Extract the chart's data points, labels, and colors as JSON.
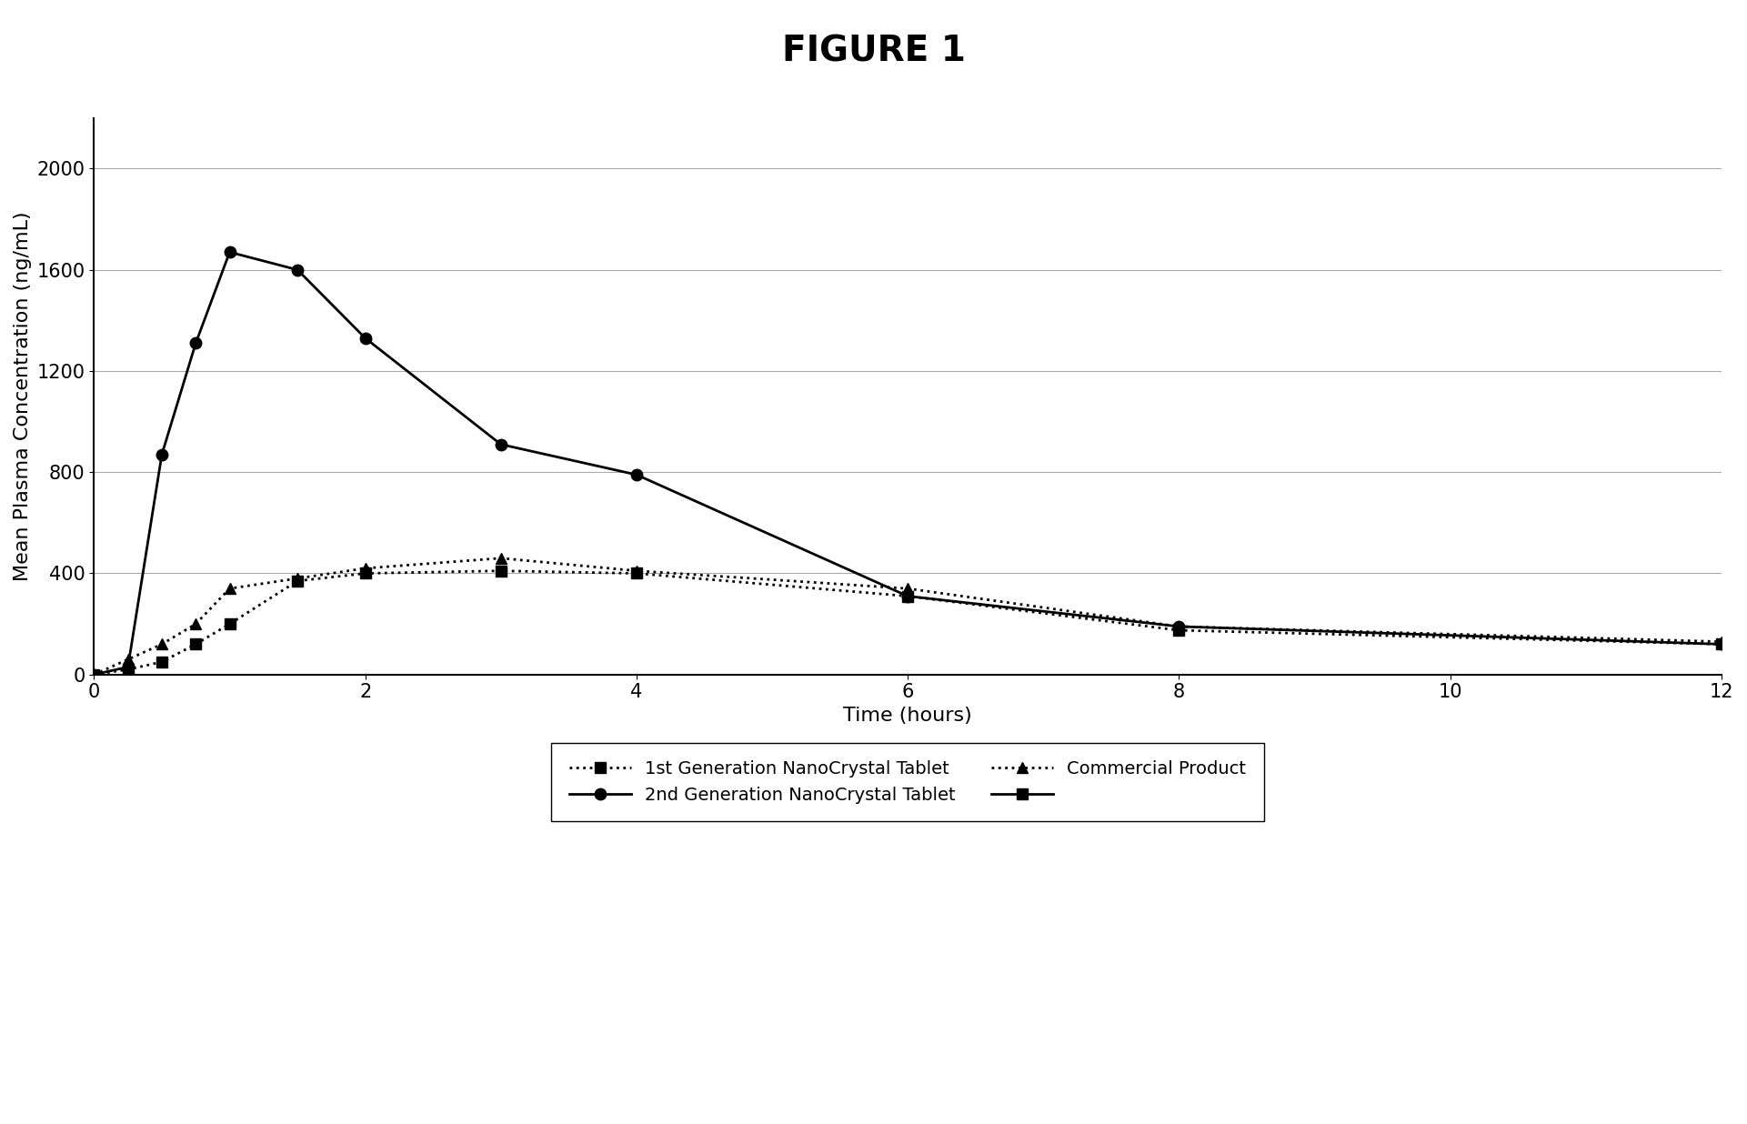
{
  "title": "FIGURE 1",
  "xlabel": "Time (hours)",
  "ylabel": "Mean Plasma Concentration (ng/mL)",
  "xlim": [
    0,
    12
  ],
  "ylim": [
    0,
    2200
  ],
  "yticks": [
    0,
    400,
    800,
    1200,
    1600,
    2000
  ],
  "xticks": [
    0,
    2,
    4,
    6,
    8,
    10,
    12
  ],
  "series": {
    "gen1": {
      "label": "1st Generation NanoCrystal Tablet",
      "x": [
        0,
        0.25,
        0.5,
        0.75,
        1.0,
        1.5,
        2.0,
        3.0,
        4.0,
        6.0,
        8.0,
        12.0
      ],
      "y": [
        0,
        20,
        50,
        120,
        200,
        370,
        400,
        410,
        400,
        310,
        175,
        120
      ],
      "color": "#000000",
      "linestyle": "dotted",
      "linewidth": 2.0,
      "marker": "s",
      "markersize": 8,
      "markerfacecolor": "#000000"
    },
    "gen2": {
      "label": "2nd Generation NanoCrystal Tablet",
      "x": [
        0,
        0.25,
        0.5,
        0.75,
        1.0,
        1.5,
        2.0,
        3.0,
        4.0,
        6.0,
        8.0,
        12.0
      ],
      "y": [
        0,
        30,
        870,
        1310,
        1670,
        1600,
        1330,
        910,
        790,
        310,
        190,
        120
      ],
      "color": "#000000",
      "linestyle": "solid",
      "linewidth": 2.0,
      "marker": "o",
      "markersize": 9,
      "markerfacecolor": "#000000"
    },
    "commercial": {
      "label": "Commercial Product",
      "x": [
        0,
        0.25,
        0.5,
        0.75,
        1.0,
        1.5,
        2.0,
        3.0,
        4.0,
        6.0,
        8.0,
        12.0
      ],
      "y": [
        0,
        60,
        120,
        200,
        340,
        380,
        420,
        460,
        410,
        340,
        190,
        130
      ],
      "color": "#000000",
      "linestyle": "dotted",
      "linewidth": 2.0,
      "marker": "^",
      "markersize": 9,
      "markerfacecolor": "#000000"
    }
  },
  "background_color": "#ffffff",
  "title_fontsize": 28,
  "axis_label_fontsize": 16,
  "tick_fontsize": 15,
  "legend_fontsize": 14
}
